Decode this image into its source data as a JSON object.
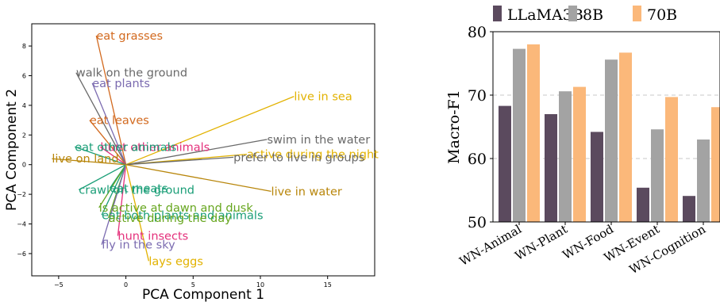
{
  "chart_data": [
    {
      "type": "scatter",
      "subtype": "pca-biplot",
      "title": "",
      "xlabel": "PCA Component 1",
      "ylabel": "PCA Component 2",
      "xlim": [
        -7,
        18.5
      ],
      "ylim": [
        -7.5,
        9.5
      ],
      "xticks": [
        -5,
        0,
        5,
        10,
        15
      ],
      "yticks": [
        -6,
        -4,
        -2,
        0,
        2,
        4,
        6,
        8
      ],
      "grid": false,
      "origin": [
        0,
        0
      ],
      "vectors": [
        {
          "label": "eat grasses",
          "x": -2.2,
          "y": 8.7,
          "color": "#d2691e"
        },
        {
          "label": "walk on the ground",
          "x": -3.7,
          "y": 6.2,
          "color": "#696969"
        },
        {
          "label": "eat plants",
          "x": -2.5,
          "y": 5.5,
          "color": "#7b6bb0"
        },
        {
          "label": "live in sea",
          "x": 12.5,
          "y": 4.6,
          "color": "#e2b200"
        },
        {
          "label": "eat leaves",
          "x": -2.7,
          "y": 3.0,
          "color": "#d2691e"
        },
        {
          "label": "swim in the water",
          "x": 10.5,
          "y": 1.7,
          "color": "#696969"
        },
        {
          "label": "hunt other animals",
          "x": -1.9,
          "y": 1.2,
          "color": "#e4307b"
        },
        {
          "label": "eat other animals",
          "x": -3.8,
          "y": 1.2,
          "color": "#1a9e77"
        },
        {
          "label": "live on land",
          "x": -5.5,
          "y": 0.4,
          "color": "#b8860b"
        },
        {
          "label": "active during the night",
          "x": 9.0,
          "y": 0.7,
          "color": "#e2b200"
        },
        {
          "label": "prefer to live in groups",
          "x": 8.0,
          "y": 0.5,
          "color": "#696969"
        },
        {
          "label": "live in water",
          "x": 10.8,
          "y": -1.8,
          "color": "#b8860b"
        },
        {
          "label": "crawl on the ground",
          "x": -3.5,
          "y": -1.7,
          "color": "#1a9e77"
        },
        {
          "label": "eat meats",
          "x": -1.2,
          "y": -1.6,
          "color": "#1a9e77"
        },
        {
          "label": "is active at dawn and dusk",
          "x": -2.0,
          "y": -2.9,
          "color": "#66a61e"
        },
        {
          "label": "eat both plants and animals",
          "x": -1.8,
          "y": -3.4,
          "color": "#1a9e77"
        },
        {
          "label": "active during the day",
          "x": -1.3,
          "y": -3.6,
          "color": "#66a61e"
        },
        {
          "label": "hunt insects",
          "x": -0.6,
          "y": -4.8,
          "color": "#e4307b"
        },
        {
          "label": "fly in the sky",
          "x": -1.8,
          "y": -5.4,
          "color": "#7b6bb0"
        },
        {
          "label": "lays eggs",
          "x": 1.7,
          "y": -6.5,
          "color": "#e2b200"
        }
      ]
    },
    {
      "type": "bar",
      "title": "",
      "xlabel": "",
      "ylabel": "Macro-F1",
      "ylim": [
        50,
        80
      ],
      "yticks": [
        50,
        60,
        70,
        80
      ],
      "grid": true,
      "legend_position": "top",
      "categories": [
        "WN-Animal",
        "WN-Plant",
        "WN-Food",
        "WN-Event",
        "WN-Cognition"
      ],
      "series": [
        {
          "name": "LLaMA3B",
          "color": "#5b4a5e",
          "values": [
            68.3,
            67.0,
            64.2,
            55.4,
            54.1
          ]
        },
        {
          "name": "8B",
          "color": "#a3a3a3",
          "values": [
            77.3,
            70.6,
            75.6,
            64.6,
            63.0
          ]
        },
        {
          "name": "70B",
          "color": "#fbb87a",
          "values": [
            78.0,
            71.3,
            76.7,
            69.7,
            68.1
          ]
        }
      ]
    }
  ]
}
